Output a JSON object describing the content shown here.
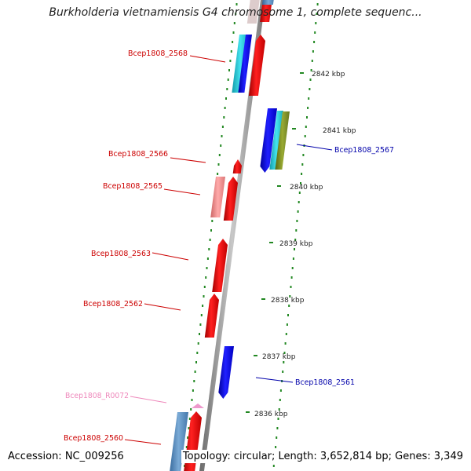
{
  "title": "Burkholderia vietnamiensis G4 chromosome 1, complete sequenc...",
  "footer": {
    "accession": "Accession: NC_009256",
    "topology": "Topology: circular; Length: 3,652,814 bp; Genes: 3,349"
  },
  "kbp_ticks": [
    "2842 kbp",
    "2841 kbp",
    "2840 kbp",
    "2839 kbp",
    "2838 kbp",
    "2837 kbp",
    "2836 kbp"
  ],
  "gene_labels": [
    {
      "id": "Bcep1808_2568",
      "strand": "reverse",
      "color": "#cc0000"
    },
    {
      "id": "Bcep1808_2566",
      "strand": "reverse",
      "color": "#cc0000"
    },
    {
      "id": "Bcep1808_2565",
      "strand": "reverse",
      "color": "#cc0000"
    },
    {
      "id": "Bcep1808_2563",
      "strand": "reverse",
      "color": "#cc0000"
    },
    {
      "id": "Bcep1808_2562",
      "strand": "reverse",
      "color": "#cc0000"
    },
    {
      "id": "Bcep1808_R0072",
      "strand": "reverse",
      "color": "#ee88bb"
    },
    {
      "id": "Bcep1808_2560",
      "strand": "reverse",
      "color": "#cc0000"
    },
    {
      "id": "Bcep1808_2567",
      "strand": "forward",
      "color": "#0000aa"
    },
    {
      "id": "Bcep1808_2561",
      "strand": "forward",
      "color": "#0000aa"
    }
  ],
  "colors": {
    "backbone": "#8c8c8c",
    "dots": "#228822",
    "cds_red": "#ee0000",
    "cds_blue": "#1010ee",
    "cds_cyan": "#22ccdd",
    "cds_olive": "#7a8a22",
    "cds_pink": "#ee8888",
    "cds_steel": "#5588bb",
    "rna_pink": "#ee99cc"
  }
}
